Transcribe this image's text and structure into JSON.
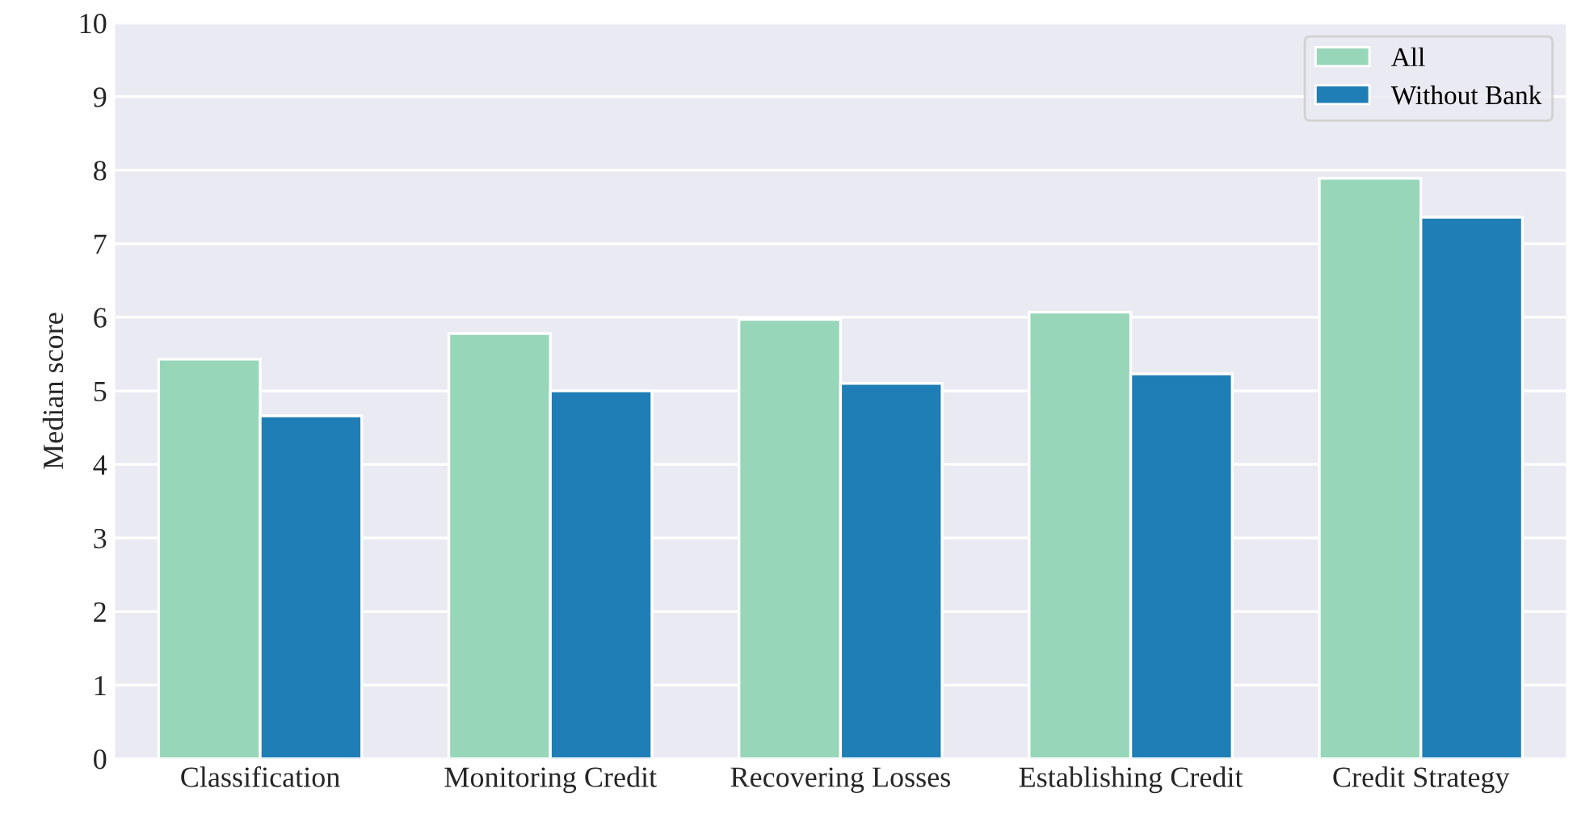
{
  "chart_data": {
    "type": "bar",
    "ylabel": "Median score",
    "categories": [
      "Classification",
      "Monitoring Credit",
      "Recovering Losses",
      "Establishing Credit",
      "Credit Strategy"
    ],
    "series": [
      {
        "name": "All",
        "color": "#98d6b9",
        "values": [
          5.43,
          5.78,
          5.97,
          6.07,
          7.89
        ]
      },
      {
        "name": "Without Bank",
        "color": "#1f7eb5",
        "values": [
          4.66,
          5.0,
          5.1,
          5.23,
          7.36
        ]
      }
    ],
    "ylim": [
      0,
      10
    ],
    "yticks": [
      0,
      1,
      2,
      3,
      4,
      5,
      6,
      7,
      8,
      9,
      10
    ],
    "grid": "y",
    "legend": "top right"
  }
}
